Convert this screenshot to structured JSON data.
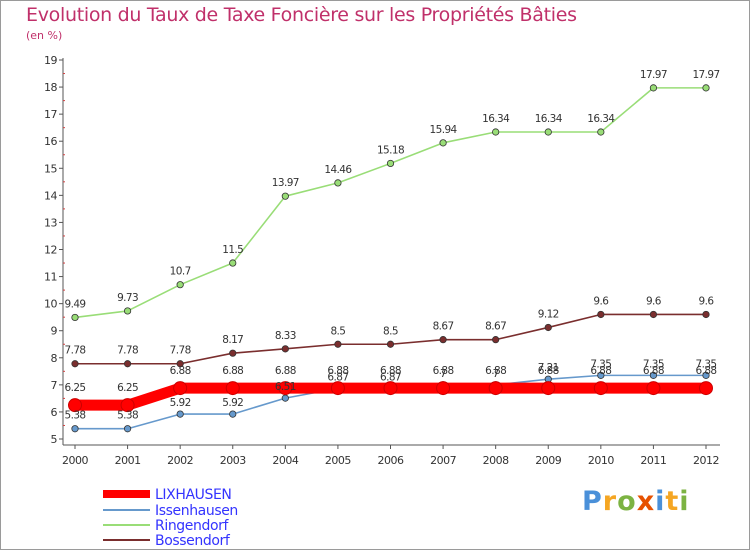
{
  "title": "Evolution du Taux de Taxe Foncière sur les Propriétés Bâties",
  "unit_label": "(en %)",
  "logo": {
    "text": "Proxiti",
    "letters": [
      "P",
      "r",
      "o",
      "x",
      "i",
      "t",
      "i"
    ],
    "colors": [
      "#4a90d9",
      "#f5a623",
      "#7cb342",
      "#e65100",
      "#4a90d9",
      "#f5a623",
      "#7cb342"
    ]
  },
  "chart_data": {
    "type": "line",
    "title": "Evolution du Taux de Taxe Foncière sur les Propriétés Bâties",
    "ylabel": "(en %)",
    "xlabel": "",
    "x": [
      "2000",
      "2001",
      "2002",
      "2003",
      "2004",
      "2005",
      "2006",
      "2007",
      "2008",
      "2009",
      "2010",
      "2011",
      "2012"
    ],
    "ylim": [
      5,
      19
    ],
    "yticks": [
      5,
      6,
      7,
      8,
      9,
      10,
      11,
      12,
      13,
      14,
      15,
      16,
      17,
      18,
      19
    ],
    "grid": false,
    "legend_position": "bottom-left",
    "series": [
      {
        "name": "LIXHAUSEN",
        "color": "#ff0000",
        "values": [
          6.25,
          6.25,
          6.88,
          6.88,
          6.88,
          6.88,
          6.88,
          6.88,
          6.88,
          6.88,
          6.88,
          6.88,
          6.88
        ],
        "labels": [
          "6.25",
          "6.25",
          "6.88",
          "6.88",
          "6.88",
          "6.88",
          "6.88",
          "6.88",
          "6.88",
          "6.88",
          "6.88",
          "6.88",
          "6.88"
        ]
      },
      {
        "name": "Issenhausen",
        "color": "#6699cc",
        "values": [
          5.38,
          5.38,
          5.92,
          5.92,
          6.51,
          6.87,
          6.87,
          7,
          7,
          7.21,
          7.35,
          7.35,
          7.35
        ],
        "labels": [
          "5.38",
          "5.38",
          "5.92",
          "5.92",
          "6.51",
          "6.87",
          "6.87",
          "7",
          "7",
          "7.21",
          "7.35",
          "7.35",
          "7.35"
        ]
      },
      {
        "name": "Ringendorf",
        "color": "#99dd77",
        "values": [
          9.49,
          9.73,
          10.7,
          11.5,
          13.97,
          14.46,
          15.18,
          15.94,
          16.34,
          16.34,
          16.34,
          17.97,
          17.97
        ],
        "labels": [
          "9.49",
          "9.73",
          "10.7",
          "11.5",
          "13.97",
          "14.46",
          "15.18",
          "15.94",
          "16.34",
          "16.34",
          "16.34",
          "17.97",
          "17.97"
        ]
      },
      {
        "name": "Bossendorf",
        "color": "#7a2e2e",
        "values": [
          7.78,
          7.78,
          7.78,
          8.17,
          8.33,
          8.5,
          8.5,
          8.67,
          8.67,
          9.12,
          9.6,
          9.6,
          9.6
        ],
        "labels": [
          "7.78",
          "7.78",
          "7.78",
          "8.17",
          "8.33",
          "8.5",
          "8.5",
          "8.67",
          "8.67",
          "9.12",
          "9.6",
          "9.6",
          "9.6"
        ]
      }
    ]
  }
}
